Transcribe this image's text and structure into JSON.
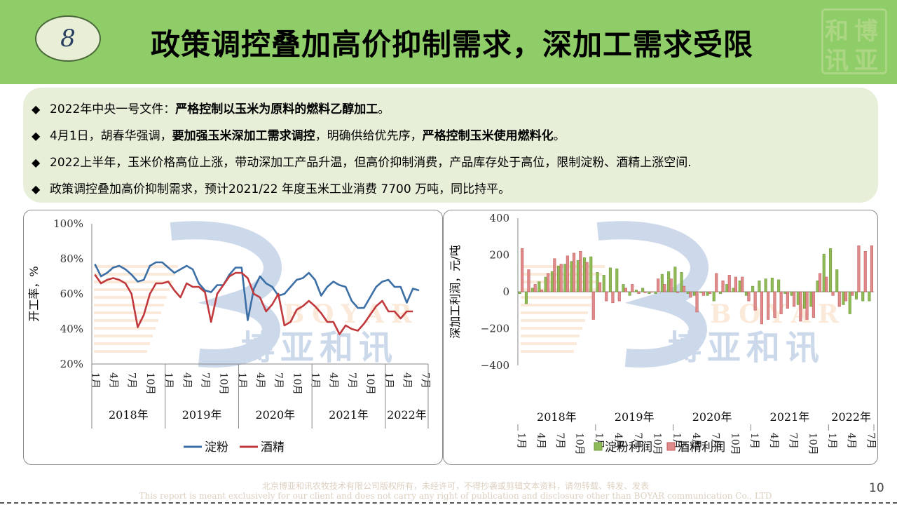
{
  "header": {
    "number": "8",
    "title": "政策调控叠加高价抑制需求，深加工需求受限",
    "stamp_chars": [
      "和",
      "博",
      "讯",
      "亚"
    ]
  },
  "bullets": [
    {
      "segments": [
        {
          "text": "2022年中央一号文件：",
          "bold": false
        },
        {
          "text": "严格控制以玉米为原料的燃料乙醇加工",
          "bold": true
        },
        {
          "text": "。",
          "bold": false
        }
      ]
    },
    {
      "segments": [
        {
          "text": "4月1日，胡春华强调，",
          "bold": false
        },
        {
          "text": "要加强玉米深加工需求调控",
          "bold": true
        },
        {
          "text": "，明确供给优先序，",
          "bold": false
        },
        {
          "text": "严格控制玉米使用燃料化",
          "bold": true
        },
        {
          "text": "。",
          "bold": false
        }
      ]
    },
    {
      "segments": [
        {
          "text": "2022上半年，玉米价格高位上涨，带动深加工产品升温，但高价抑制消费，产品库存处于高位，限制淀粉、酒精上涨空间.",
          "bold": false
        }
      ]
    },
    {
      "segments": [
        {
          "text": "政策调控叠加高价抑制需求，预计2021/22 年度玉米工业消费 7700 万吨，同比持平。",
          "bold": false
        }
      ]
    }
  ],
  "watermark": {
    "brand_en": "BOYAR",
    "brand_cn": "博亚和讯"
  },
  "chart_data": [
    {
      "type": "line",
      "ylabel": "开工率，%",
      "ylim": [
        20,
        100
      ],
      "yticks": [
        "20%",
        "40%",
        "60%",
        "80%",
        "100%"
      ],
      "ytick_values": [
        20,
        40,
        60,
        80,
        100
      ],
      "month_ticks": [
        "1月",
        "4月",
        "7月",
        "10月"
      ],
      "years": [
        "2018年",
        "2019年",
        "2020年",
        "2021年",
        "2022年"
      ],
      "year_month_ticks": [
        "1月",
        "4月",
        "7月"
      ],
      "legend_position": "bottom",
      "colors": {
        "淀粉": "#3b6fa6",
        "酒精": "#c0393d"
      },
      "series": [
        {
          "name": "淀粉",
          "values": [
            77,
            70,
            72,
            75,
            76,
            74,
            71,
            67,
            68,
            76,
            78,
            78,
            75,
            72,
            74,
            76,
            74,
            66,
            62,
            61,
            65,
            65,
            71,
            75,
            75,
            45,
            63,
            70,
            66,
            64,
            59,
            60,
            64,
            68,
            69,
            72,
            68,
            59,
            64,
            67,
            65,
            64,
            56,
            52,
            52,
            58,
            64,
            67,
            68,
            64,
            64,
            55,
            63,
            62
          ]
        },
        {
          "name": "酒精",
          "values": [
            71,
            66,
            68,
            69,
            68,
            66,
            60,
            41,
            48,
            60,
            66,
            66,
            67,
            62,
            58,
            66,
            64,
            64,
            61,
            44,
            60,
            65,
            70,
            72,
            72,
            69,
            60,
            58,
            50,
            54,
            60,
            42,
            44,
            51,
            53,
            56,
            53,
            49,
            44,
            44,
            37,
            42,
            40,
            39,
            43,
            48,
            53,
            56,
            50,
            50,
            46,
            50,
            50
          ]
        }
      ]
    },
    {
      "type": "bar",
      "ylabel": "深加工利润，元/吨",
      "ylim": [
        -400,
        400
      ],
      "yticks": [
        "−400",
        "−200",
        "0",
        "200",
        "400"
      ],
      "ytick_values": [
        -400,
        -200,
        0,
        200,
        400
      ],
      "month_ticks": [
        "1月",
        "4月",
        "7月",
        "10月"
      ],
      "years": [
        "2018年",
        "2019年",
        "2020年",
        "2021年",
        "2022年"
      ],
      "year_month_ticks": [
        "1月",
        "4月",
        "7月"
      ],
      "legend_position": "bottom",
      "colors": {
        "淀粉利润": "#8fba55",
        "酒精利润": "#e08c8c"
      },
      "series": [
        {
          "name": "淀粉利润",
          "values": [
            -10,
            -65,
            20,
            55,
            80,
            110,
            140,
            150,
            165,
            170,
            185,
            190,
            105,
            90,
            130,
            125,
            40,
            -20,
            10,
            20,
            -10,
            -10,
            95,
            110,
            135,
            105,
            -10,
            -20,
            -5,
            -20,
            -50,
            -10,
            40,
            20,
            60,
            -20,
            30,
            60,
            70,
            75,
            65,
            -10,
            -20,
            -70,
            -90,
            -80,
            60,
            205,
            235,
            120,
            -70,
            -120,
            -40,
            -50,
            -50
          ]
        },
        {
          "name": "酒精利润",
          "values": [
            235,
            120,
            40,
            10,
            100,
            180,
            150,
            195,
            210,
            220,
            160,
            -150,
            50,
            -50,
            -60,
            -50,
            20,
            40,
            -10,
            -5,
            0,
            70,
            40,
            70,
            -5,
            30,
            -30,
            -110,
            -20,
            -10,
            100,
            60,
            90,
            80,
            80,
            -50,
            -100,
            -175,
            -150,
            -140,
            -120,
            -90,
            -80,
            -160,
            -150,
            -140,
            100,
            80,
            -20,
            -80,
            -50,
            -20,
            250,
            220,
            250
          ]
        }
      ]
    }
  ],
  "footer": {
    "line1": "北京博亚和讯农牧技术有限公司版权所有，未经许可，不得抄袭或剪辑文本资料，请勿转载、转发、发表",
    "line2": "This report is meant exclusively for our client and does not carry any right of publication and disclosure other than BOYAR communication Co., LTD",
    "page": "10"
  }
}
